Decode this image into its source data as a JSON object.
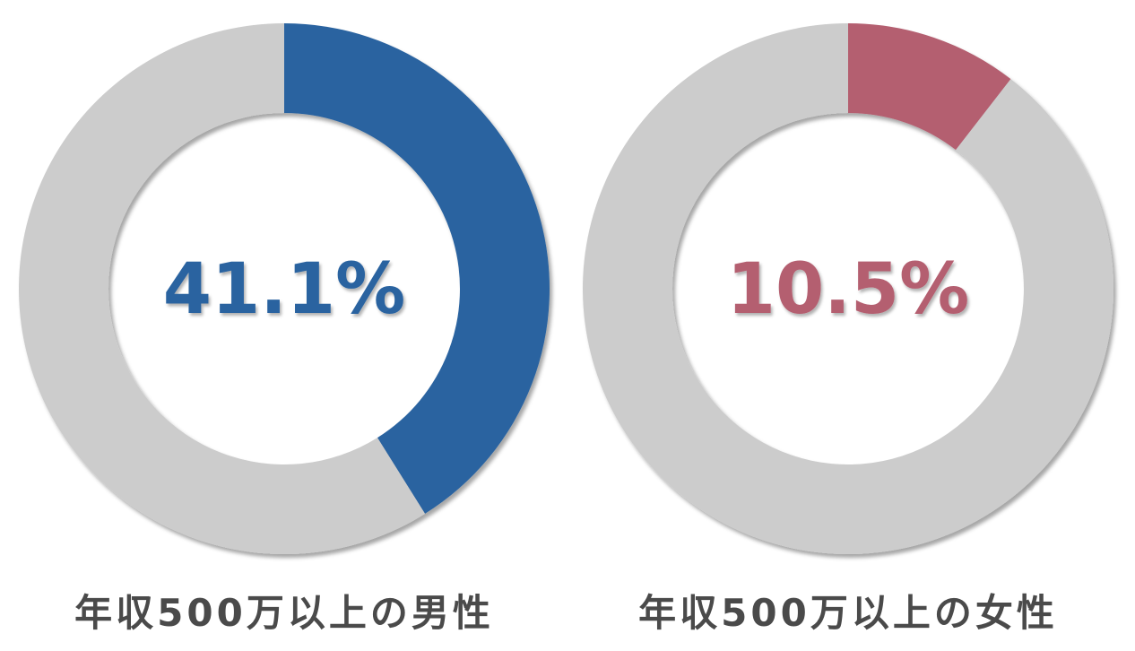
{
  "chart_data": [
    {
      "type": "pie",
      "values": [
        41.1,
        58.9
      ],
      "center_label": "41.1%",
      "caption": "年収500万以上の男性",
      "colors": {
        "highlight": "#2c64a0",
        "rest": "#cccccc"
      }
    },
    {
      "type": "pie",
      "values": [
        10.5,
        89.5
      ],
      "center_label": "10.5%",
      "caption": "年収500万以上の女性",
      "colors": {
        "highlight": "#b45e70",
        "rest": "#cccccc"
      }
    }
  ]
}
